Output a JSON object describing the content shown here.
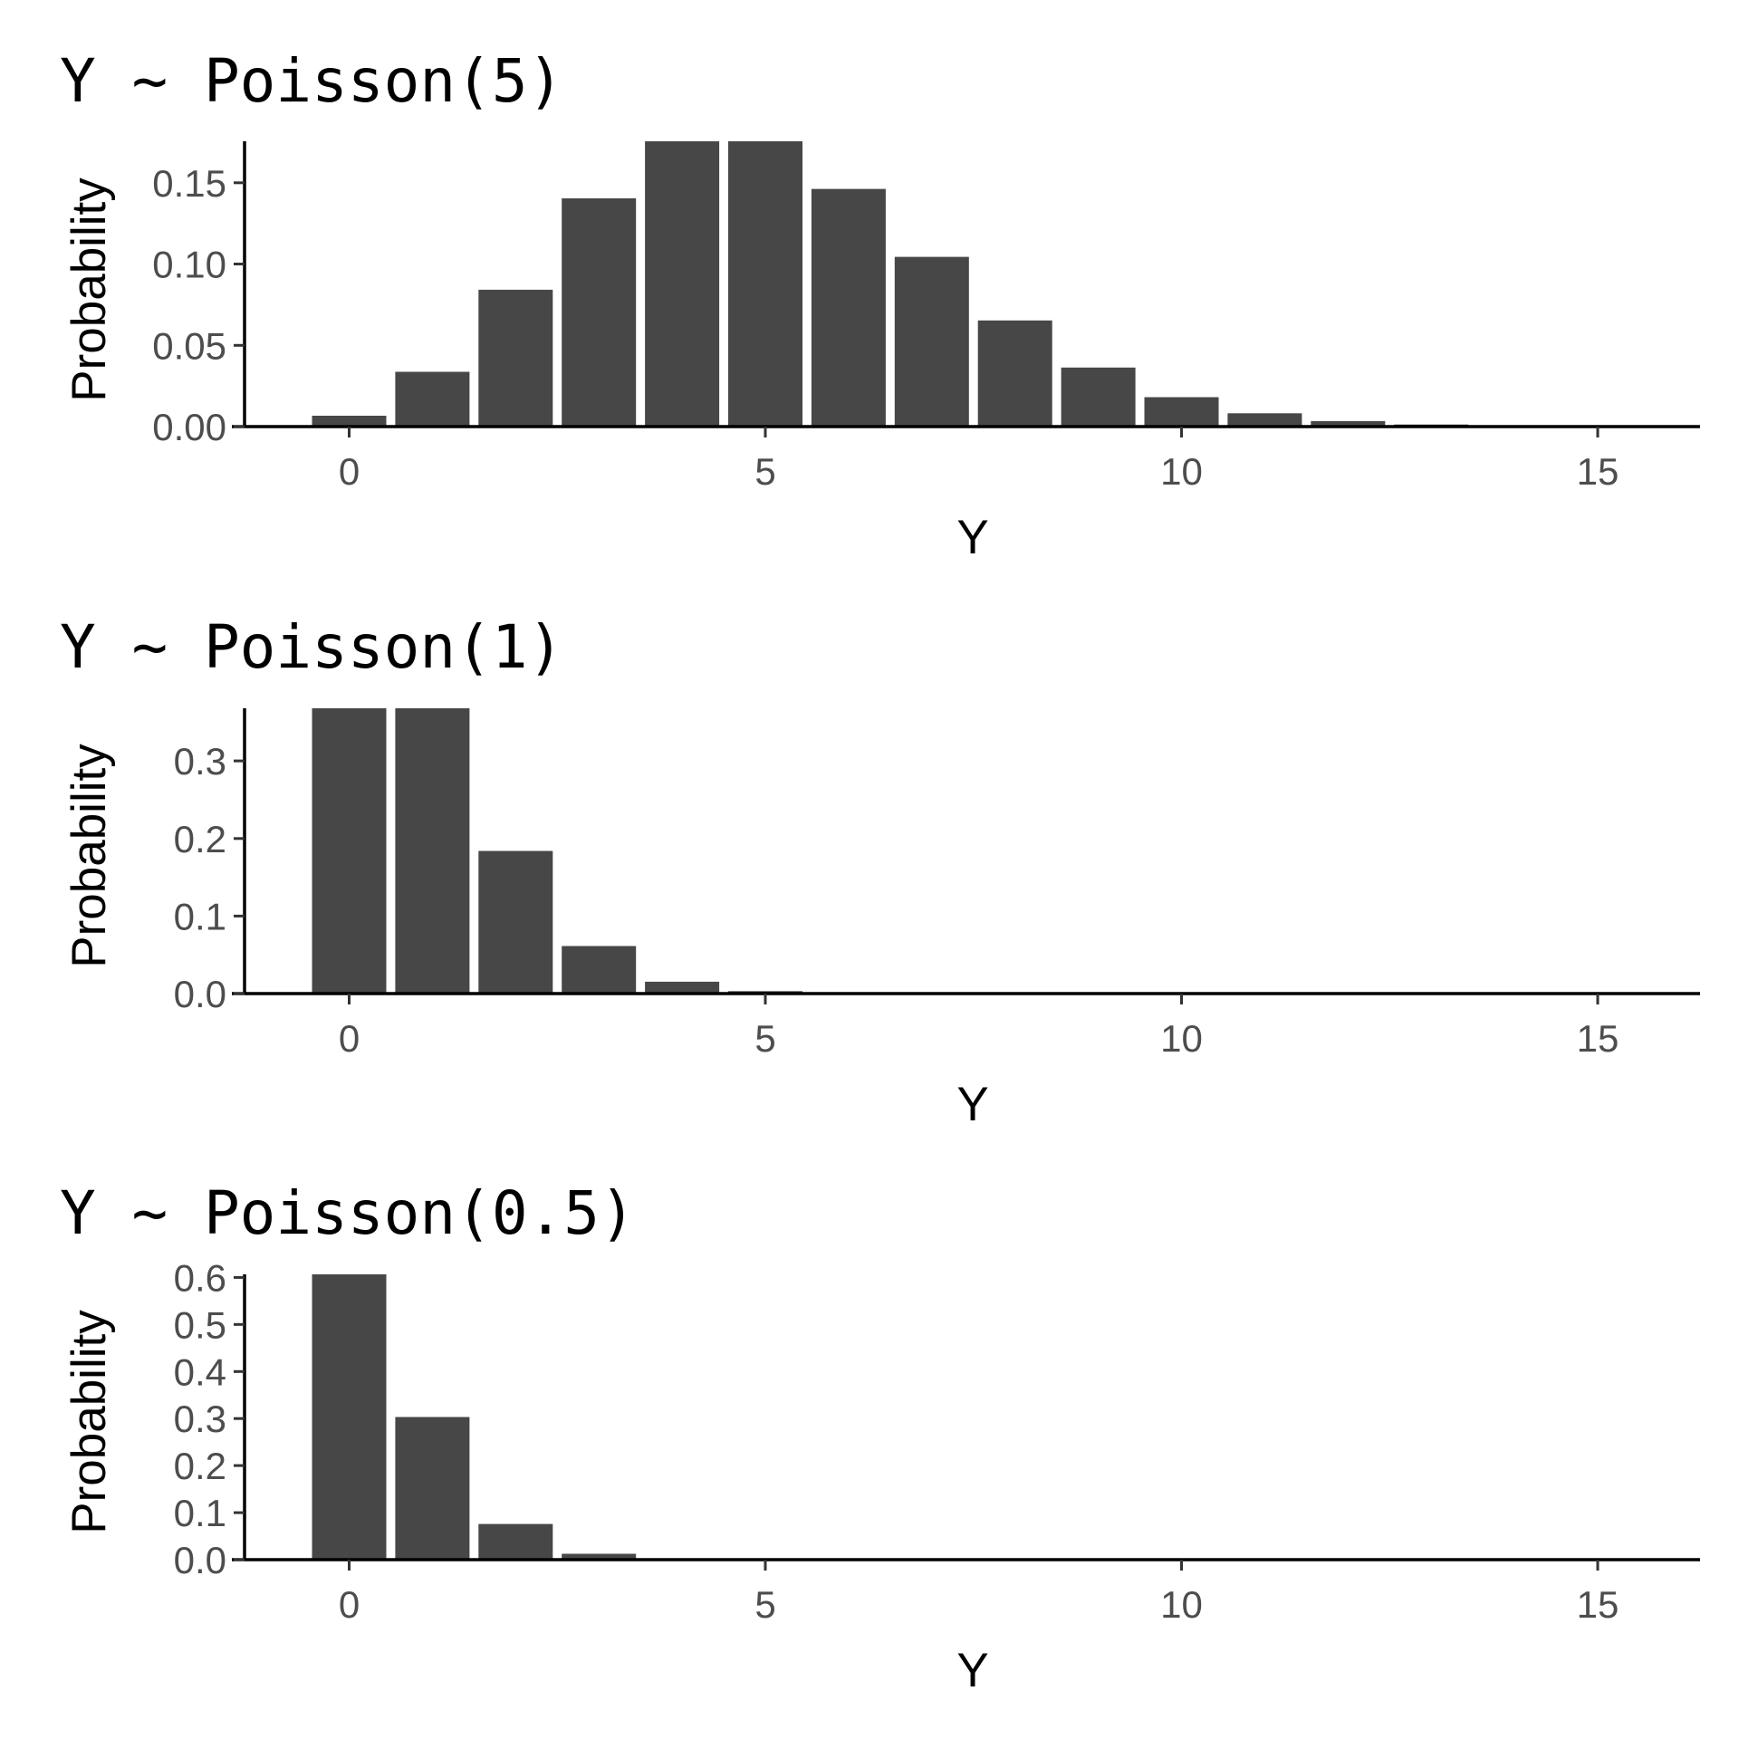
{
  "colors": {
    "bar": "#474747",
    "background": "#ffffff",
    "axis": "#000000",
    "tick_text": "#4d4d4d"
  },
  "chart_data": [
    {
      "type": "bar",
      "title": "Y ~ Poisson(5)",
      "xlabel": "Y",
      "ylabel": "Probability",
      "x": [
        0,
        1,
        2,
        3,
        4,
        5,
        6,
        7,
        8,
        9,
        10,
        11,
        12,
        13,
        14,
        15
      ],
      "values": [
        0.0067,
        0.0337,
        0.0842,
        0.1404,
        0.1755,
        0.1755,
        0.1462,
        0.1044,
        0.0653,
        0.0363,
        0.0181,
        0.0082,
        0.0034,
        0.0013,
        0.0005,
        0.0002
      ],
      "xlim": [
        -1.25,
        16.25
      ],
      "ylim": [
        0,
        0.1755
      ],
      "x_ticks": [
        "0",
        "5",
        "10",
        "15"
      ],
      "y_ticks": [
        "0.00",
        "0.05",
        "0.10",
        "0.15"
      ],
      "grid": false
    },
    {
      "type": "bar",
      "title": "Y ~ Poisson(1)",
      "xlabel": "Y",
      "ylabel": "Probability",
      "x": [
        0,
        1,
        2,
        3,
        4,
        5,
        6,
        7,
        8,
        9,
        10,
        11,
        12,
        13,
        14,
        15
      ],
      "values": [
        0.3679,
        0.3679,
        0.1839,
        0.0613,
        0.0153,
        0.0031,
        0.0005,
        0.0001,
        0,
        0,
        0,
        0,
        0,
        0,
        0,
        0
      ],
      "xlim": [
        -1.25,
        16.25
      ],
      "ylim": [
        0,
        0.3679
      ],
      "x_ticks": [
        "0",
        "5",
        "10",
        "15"
      ],
      "y_ticks": [
        "0.0",
        "0.1",
        "0.2",
        "0.3"
      ],
      "grid": false
    },
    {
      "type": "bar",
      "title": "Y ~ Poisson(0.5)",
      "xlabel": "Y",
      "ylabel": "Probability",
      "x": [
        0,
        1,
        2,
        3,
        4,
        5,
        6,
        7,
        8,
        9,
        10,
        11,
        12,
        13,
        14,
        15
      ],
      "values": [
        0.6065,
        0.3033,
        0.0758,
        0.0126,
        0.0016,
        0.0002,
        0,
        0,
        0,
        0,
        0,
        0,
        0,
        0,
        0,
        0
      ],
      "xlim": [
        -1.25,
        16.25
      ],
      "ylim": [
        0,
        0.6065
      ],
      "x_ticks": [
        "0",
        "5",
        "10",
        "15"
      ],
      "y_ticks": [
        "0.0",
        "0.1",
        "0.2",
        "0.3",
        "0.4",
        "0.5",
        "0.6"
      ],
      "grid": false
    }
  ]
}
